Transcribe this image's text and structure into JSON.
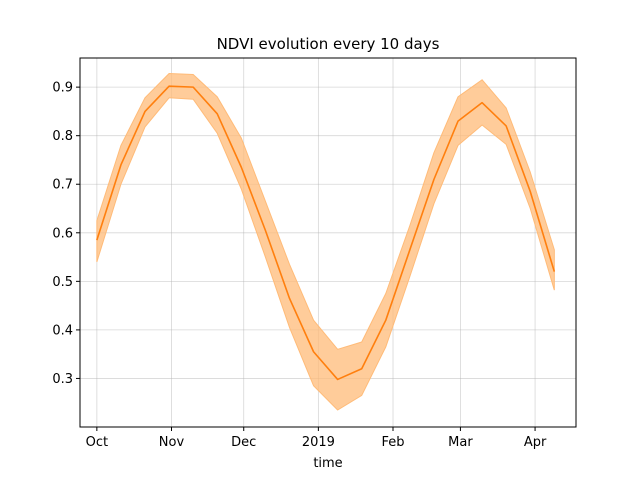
{
  "chart_data": {
    "type": "line",
    "title": "NDVI evolution every 10 days",
    "xlabel": "time",
    "ylabel": "",
    "x_tick_labels": [
      {
        "label": "Oct",
        "date": "2018-10-01"
      },
      {
        "label": "Nov",
        "date": "2018-11-01"
      },
      {
        "label": "Dec",
        "date": "2018-12-01"
      },
      {
        "label": "2019",
        "date": "2019-01-01"
      },
      {
        "label": "Feb",
        "date": "2019-02-01"
      },
      {
        "label": "Mar",
        "date": "2019-03-01"
      },
      {
        "label": "Apr",
        "date": "2019-04-01"
      }
    ],
    "y_ticks": [
      0.3,
      0.4,
      0.5,
      0.6,
      0.7,
      0.8,
      0.9
    ],
    "xlim": [
      "2018-09-24",
      "2019-04-18"
    ],
    "ylim": [
      0.2,
      0.96
    ],
    "grid": true,
    "colors": {
      "line": "#ff7f0e",
      "band": "#ffbb78"
    },
    "series": [
      {
        "x": [
          "2018-10-01",
          "2018-10-11",
          "2018-10-21",
          "2018-10-31",
          "2018-11-10",
          "2018-11-20",
          "2018-11-30",
          "2018-12-10",
          "2018-12-20",
          "2018-12-30",
          "2019-01-09",
          "2019-01-19",
          "2019-01-29",
          "2019-02-08",
          "2019-02-18",
          "2019-02-28",
          "2019-03-10",
          "2019-03-20",
          "2019-03-30",
          "2019-04-09"
        ],
        "y": [
          0.585,
          0.74,
          0.85,
          0.902,
          0.9,
          0.845,
          0.735,
          0.605,
          0.465,
          0.355,
          0.298,
          0.32,
          0.42,
          0.565,
          0.71,
          0.83,
          0.868,
          0.82,
          0.685,
          0.52
        ],
        "lower": [
          0.54,
          0.7,
          0.818,
          0.878,
          0.875,
          0.805,
          0.69,
          0.55,
          0.405,
          0.285,
          0.235,
          0.265,
          0.365,
          0.51,
          0.66,
          0.78,
          0.822,
          0.782,
          0.65,
          0.482
        ],
        "upper": [
          0.625,
          0.78,
          0.878,
          0.928,
          0.926,
          0.88,
          0.795,
          0.665,
          0.535,
          0.42,
          0.36,
          0.375,
          0.475,
          0.615,
          0.765,
          0.88,
          0.915,
          0.857,
          0.725,
          0.565
        ]
      }
    ]
  }
}
